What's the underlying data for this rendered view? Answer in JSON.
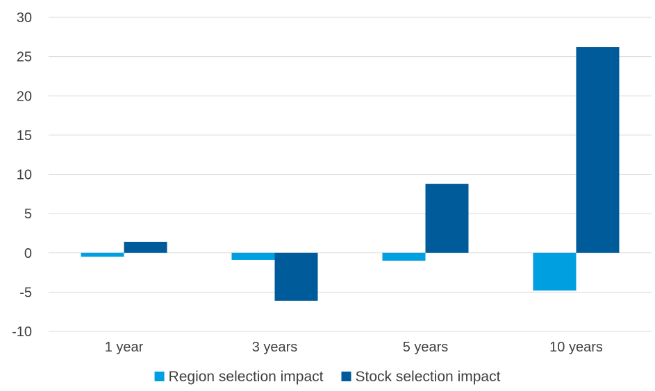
{
  "chart_data": {
    "type": "bar",
    "categories": [
      "1 year",
      "3 years",
      "5 years",
      "10 years"
    ],
    "series": [
      {
        "name": "Region selection impact",
        "color": "#009fdf",
        "values": [
          -0.5,
          -0.9,
          -1.0,
          -4.8
        ]
      },
      {
        "name": "Stock selection impact",
        "color": "#005b9a",
        "values": [
          1.4,
          -6.1,
          8.8,
          26.2
        ]
      }
    ],
    "yticks": [
      "30",
      "25",
      "20",
      "15",
      "10",
      "5",
      "0",
      "-5",
      "-10"
    ],
    "ylim": [
      -10,
      30
    ],
    "grid": true,
    "legend": "bottom-center",
    "title": "",
    "xlabel": "",
    "ylabel": ""
  }
}
